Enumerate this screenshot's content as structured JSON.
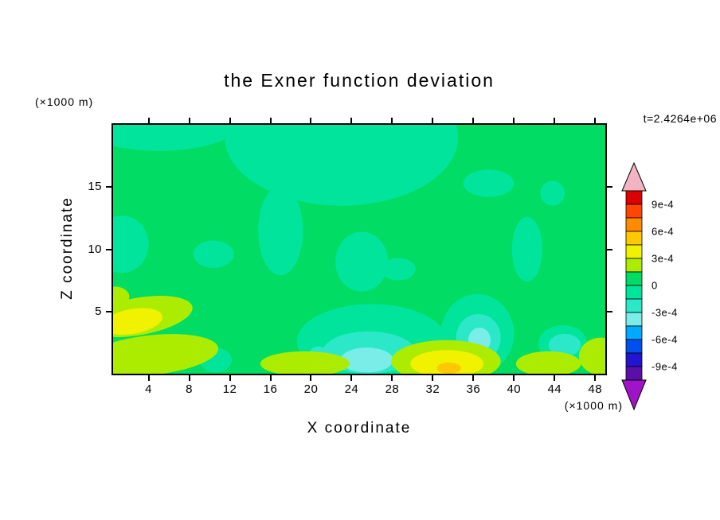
{
  "chart_data": {
    "type": "filled_contour",
    "title": "the Exner function deviation",
    "time_annotation": "t=2.4264e+06",
    "axes": {
      "x_label": "X coordinate",
      "x_units": "(×1000 m)",
      "x_range": [
        0.5,
        49
      ],
      "x_ticks": [
        4,
        8,
        12,
        16,
        20,
        24,
        28,
        32,
        36,
        40,
        44,
        48
      ],
      "y_label": "Z coordinate",
      "y_units": "(×1000 m)",
      "y_range": [
        0,
        20
      ],
      "y_ticks": [
        5,
        10,
        15
      ]
    },
    "grid": false,
    "legend_position": "right-colorbar",
    "contour_interval": "1.5e-4",
    "colorbar": {
      "tick_labels": [
        "9e-4",
        "6e-4",
        "3e-4",
        "0",
        "-3e-4",
        "-6e-4",
        "-9e-4"
      ],
      "arrow_top_color": "#F2B3C3",
      "arrow_bottom_color": "#A014C8",
      "bands": [
        {
          "range": "9e-4 .. 1.05e-3",
          "color": "#DC0000"
        },
        {
          "range": "7.5e-4 .. 9e-4",
          "color": "#FF4600"
        },
        {
          "range": "6e-4 .. 7.5e-4",
          "color": "#FF8C00"
        },
        {
          "range": "4.5e-4 .. 6e-4",
          "color": "#FFC800"
        },
        {
          "range": "3e-4 .. 4.5e-4",
          "color": "#F1F200"
        },
        {
          "range": "1.5e-4 .. 3e-4",
          "color": "#ACEC00"
        },
        {
          "range": "0 .. 1.5e-4",
          "color": "#00DC64"
        },
        {
          "range": "-1.5e-4 .. 0",
          "color": "#00E59B"
        },
        {
          "range": "-3e-4 .. -1.5e-4",
          "color": "#2AE8C8"
        },
        {
          "range": "-4.5e-4 .. -3e-4",
          "color": "#7BEDE9"
        },
        {
          "range": "-6e-4 .. -4.5e-4",
          "color": "#00AAFF"
        },
        {
          "range": "-7.5e-4 .. -6e-4",
          "color": "#0050F0"
        },
        {
          "range": "-9e-4 .. -7.5e-4",
          "color": "#2314D2"
        },
        {
          "range": "-1.05e-3 .. -9e-4",
          "color": "#5A10A8"
        }
      ]
    },
    "levels": {
      "base": "#00DC64",
      "m1": "#00E59B",
      "m2": "#2AE8C8",
      "m3": "#7BEDE9",
      "p1": "#ACEC00",
      "p2": "#F1F200",
      "p3": "#FFC800"
    },
    "level_ranges": {
      "base": "0 .. 1.5e-4",
      "m1": "-1.5e-4 .. 0",
      "m2": "-3e-4 .. -1.5e-4",
      "m3": "-4.5e-4 .. -3e-4",
      "p1": "1.5e-4 .. 3e-4",
      "p2": "3e-4 .. 4.5e-4",
      "p3": "4.5e-4 .. 6e-4"
    },
    "field_regions": [
      {
        "level": "m1",
        "cx": 23,
        "cz": 19,
        "rx": 11.5,
        "rz": 5.5
      },
      {
        "level": "m1",
        "cx": 5,
        "cz": 20.5,
        "rx": 8.5,
        "rz": 2.6
      },
      {
        "level": "m1",
        "cx": 17,
        "cz": 11.5,
        "rx": 2.2,
        "rz": 3.6
      },
      {
        "level": "m1",
        "cx": 1.4,
        "cz": 10.4,
        "rx": 2.6,
        "rz": 2.3
      },
      {
        "level": "m1",
        "cx": 10.4,
        "cz": 9.6,
        "rx": 2.0,
        "rz": 1.1
      },
      {
        "level": "m1",
        "cx": 25,
        "cz": 9,
        "rx": 2.6,
        "rz": 2.4
      },
      {
        "level": "m1",
        "cx": 28.6,
        "cz": 8.4,
        "rx": 1.7,
        "rz": 0.9
      },
      {
        "level": "m1",
        "cx": 41.3,
        "cz": 10,
        "rx": 1.5,
        "rz": 2.6
      },
      {
        "level": "m1",
        "cx": 43.8,
        "cz": 14.5,
        "rx": 1.2,
        "rz": 1.0
      },
      {
        "level": "m1",
        "cx": 37.5,
        "cz": 15.3,
        "rx": 2.5,
        "rz": 1.1
      },
      {
        "level": "m1",
        "cx": 26,
        "cz": 2.6,
        "rx": 7.4,
        "rz": 3.0
      },
      {
        "level": "m1",
        "cx": 36.4,
        "cz": 3.2,
        "rx": 3.6,
        "rz": 3.2
      },
      {
        "level": "m1",
        "cx": 44.8,
        "cz": 2.4,
        "rx": 2.4,
        "rz": 1.5
      },
      {
        "level": "m1",
        "cx": 10.6,
        "cz": 1.1,
        "rx": 1.6,
        "rz": 1.0
      },
      {
        "level": "m2",
        "cx": 25.7,
        "cz": 1.7,
        "rx": 4.6,
        "rz": 1.7
      },
      {
        "level": "m2",
        "cx": 36.5,
        "cz": 2.9,
        "rx": 2.2,
        "rz": 1.9
      },
      {
        "level": "m2",
        "cx": 20.7,
        "cz": 0.8,
        "rx": 1.2,
        "rz": 1.4
      },
      {
        "level": "m2",
        "cx": 45.0,
        "cz": 2.3,
        "rx": 1.6,
        "rz": 0.9
      },
      {
        "level": "m3",
        "cx": 25.5,
        "cz": 1.1,
        "rx": 2.6,
        "rz": 1.0
      },
      {
        "level": "m3",
        "cx": 36.6,
        "cz": 2.7,
        "rx": 1.1,
        "rz": 1.0
      },
      {
        "level": "p1",
        "cx": 3.0,
        "cz": 4.6,
        "rx": 5.4,
        "rz": 1.5,
        "rot": -10
      },
      {
        "level": "p1",
        "cx": 4.3,
        "cz": 1.5,
        "rx": 6.6,
        "rz": 1.6,
        "rot": -6
      },
      {
        "level": "p1",
        "cx": 0.7,
        "cz": 6.2,
        "rx": 1.4,
        "rz": 0.8
      },
      {
        "level": "p1",
        "cx": 19.4,
        "cz": 0.8,
        "rx": 4.4,
        "rz": 1.0
      },
      {
        "level": "p1",
        "cx": 33.3,
        "cz": 1.0,
        "rx": 5.4,
        "rz": 1.7
      },
      {
        "level": "p1",
        "cx": 43.4,
        "cz": 0.8,
        "rx": 3.2,
        "rz": 1.0
      },
      {
        "level": "p1",
        "cx": 48.6,
        "cz": 1.4,
        "rx": 2.2,
        "rz": 1.5
      },
      {
        "level": "p2",
        "cx": 2.4,
        "cz": 4.2,
        "rx": 3.0,
        "rz": 1.0,
        "rot": -10
      },
      {
        "level": "p2",
        "cx": 33.4,
        "cz": 0.8,
        "rx": 3.6,
        "rz": 1.1
      },
      {
        "level": "p3",
        "cx": 33.6,
        "cz": 0.45,
        "rx": 1.2,
        "rz": 0.45
      }
    ]
  }
}
